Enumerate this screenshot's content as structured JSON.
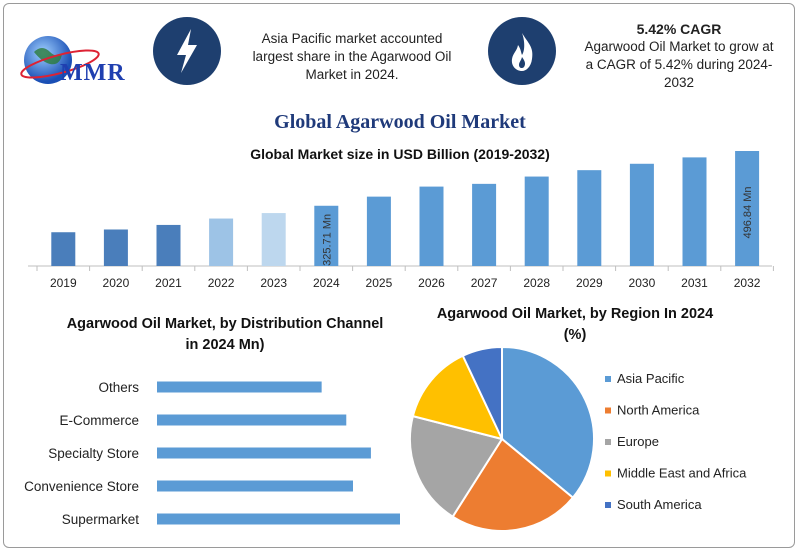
{
  "header": {
    "logo_text": "MMR",
    "left_icon": "lightning-icon",
    "left_text_lines": [
      "Asia Pacific market accounted",
      "largest share in the Agarwood Oil",
      "Market in 2024."
    ],
    "right_icon": "flame-icon",
    "right_heading": "5.42% CAGR",
    "right_text_lines": [
      "Agarwood Oil Market to grow at",
      "a CAGR of 5.42% during 2024-",
      "2032"
    ]
  },
  "title": "Global Agarwood Oil Market",
  "colors": {
    "dark_bar": "#4a7ebb",
    "mid_bar": "#5b9bd5",
    "light_bar": "#9dc3e6",
    "lighter_bar": "#bdd7ee",
    "pie": [
      "#5b9bd5",
      "#ed7d31",
      "#a5a5a5",
      "#ffc000",
      "#4472c4"
    ]
  },
  "chart_data": [
    {
      "type": "bar",
      "title": "Global Market size in USD Billion (2019-2032)",
      "categories": [
        "2019",
        "2020",
        "2021",
        "2022",
        "2023",
        "2024",
        "2025",
        "2026",
        "2027",
        "2028",
        "2029",
        "2030",
        "2031",
        "2032"
      ],
      "values": [
        37,
        40,
        45,
        52,
        58,
        66,
        76,
        87,
        90,
        98,
        105,
        112,
        119,
        126
      ],
      "annotations": [
        {
          "category": "2024",
          "text": "325.71 Mn"
        },
        {
          "category": "2032",
          "text": "496.84 Mn"
        }
      ],
      "ylim": [
        0,
        130
      ]
    },
    {
      "type": "bar",
      "orientation": "horizontal",
      "title": "Agarwood Oil Market, by Distribution Channel in 2024 Mn)",
      "categories": [
        "Others",
        "E-Commerce",
        "Specialty Store",
        "Convenience Store",
        "Supermarket"
      ],
      "values": [
        147,
        169,
        191,
        175,
        236
      ],
      "xlim": [
        0,
        250
      ]
    },
    {
      "type": "pie",
      "title": "Agarwood Oil Market, by Region In 2024 (%)",
      "labels": [
        "Asia Pacific",
        "North America",
        "Europe",
        "Middle East and Africa",
        "South America"
      ],
      "values": [
        36,
        23,
        20,
        14,
        7
      ],
      "legend": "right"
    }
  ]
}
